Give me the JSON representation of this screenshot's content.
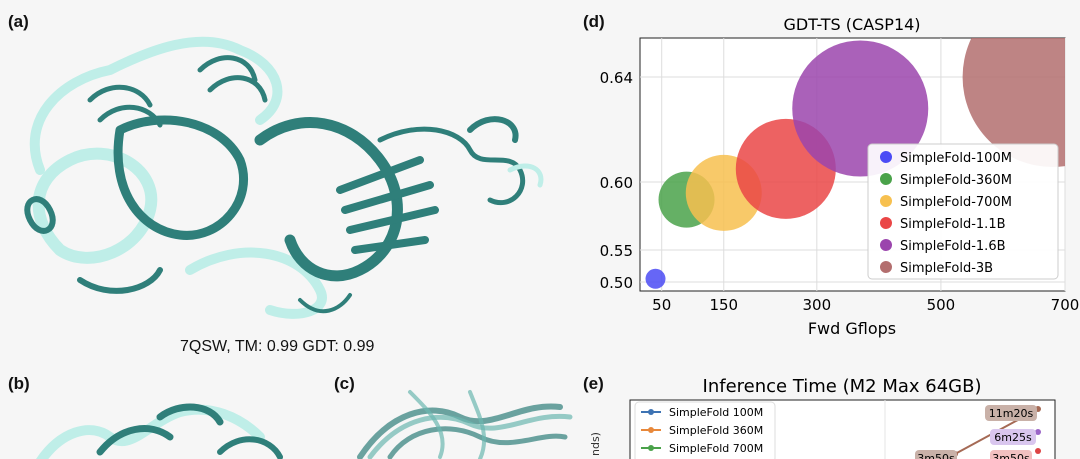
{
  "panels": {
    "a": {
      "letter": "(a)",
      "caption": "7QSW, TM: 0.99 GDT: 0.99"
    },
    "b": {
      "letter": "(b)"
    },
    "c": {
      "letter": "(c)"
    },
    "d": {
      "letter": "(d)"
    },
    "e": {
      "letter": "(e)"
    }
  },
  "colors": {
    "protein_dark": "#2f7f7a",
    "protein_light": "#bfeee8"
  },
  "chart_data": [
    {
      "type": "scatter",
      "title": "GDT-TS (CASP14)",
      "xlabel": "Fwd Gflops",
      "ylabel": "",
      "xticks": [
        50,
        150,
        300,
        500,
        700
      ],
      "yticks": [
        0.5,
        0.55,
        0.6,
        0.64
      ],
      "grid": true,
      "legend_position": "right",
      "series": [
        {
          "name": "SimpleFold-100M",
          "x": 40,
          "y": 0.505,
          "color": "#4b4bf5"
        },
        {
          "name": "SimpleFold-360M",
          "x": 90,
          "y": 0.587,
          "color": "#4aa24a"
        },
        {
          "name": "SimpleFold-700M",
          "x": 150,
          "y": 0.592,
          "color": "#f7c04f"
        },
        {
          "name": "SimpleFold-1.1B",
          "x": 250,
          "y": 0.605,
          "color": "#ea4646"
        },
        {
          "name": "SimpleFold-1.6B",
          "x": 370,
          "y": 0.628,
          "color": "#9b45ad"
        },
        {
          "name": "SimpleFold-3B",
          "x": 680,
          "y": 0.64,
          "color": "#b36e6e"
        }
      ]
    },
    {
      "type": "line",
      "title": "Inference Time (M2 Max 64GB)",
      "ylabel": "nds)",
      "legend_position": "top-left",
      "series": [
        {
          "name": "SimpleFold 100M",
          "color": "#3e73b3"
        },
        {
          "name": "SimpleFold 360M",
          "color": "#e8883a"
        },
        {
          "name": "SimpleFold 700M",
          "color": "#4aa24a"
        }
      ],
      "annotations": [
        "11m20s",
        "6m25s",
        "3m50s",
        "3m50s"
      ]
    }
  ]
}
